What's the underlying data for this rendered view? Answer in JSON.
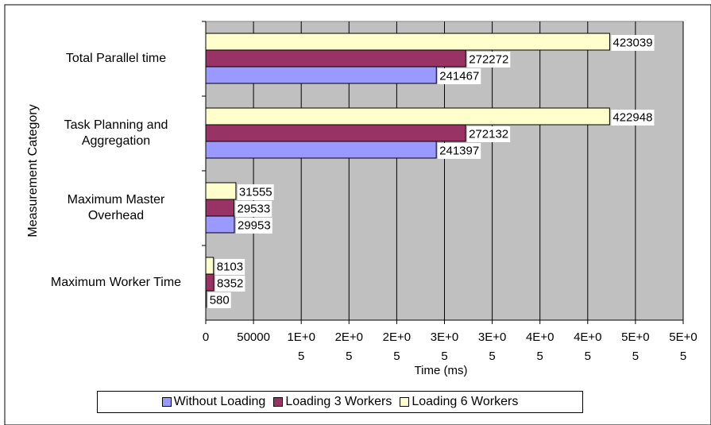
{
  "chart_data": {
    "type": "bar",
    "orientation": "horizontal",
    "categories": [
      "Maximum Worker Time",
      "Maximum Master Overhead",
      "Task Planning and Aggregation",
      "Total Parallel time"
    ],
    "series": [
      {
        "name": "Without Loading",
        "color": "#9999ff",
        "values": [
          580,
          29953,
          241397,
          241467
        ]
      },
      {
        "name": "Loading 3 Workers",
        "color": "#993366",
        "values": [
          8352,
          29533,
          272132,
          272272
        ]
      },
      {
        "name": "Loading 6 Workers",
        "color": "#ffffcc",
        "values": [
          8103,
          31555,
          422948,
          423039
        ]
      }
    ],
    "xlabel": "Time (ms)",
    "ylabel": "Measurement Category",
    "xlim": [
      0,
      500000
    ],
    "xticks": [
      0,
      50000,
      {
        "value": 100000,
        "label": "1E+05"
      },
      {
        "value": 150000,
        "label": "2E+05"
      },
      {
        "value": 200000,
        "label": "2E+05"
      },
      {
        "value": 250000,
        "label": "3E+05"
      },
      {
        "value": 300000,
        "label": "3E+05"
      },
      {
        "value": 350000,
        "label": "4E+05"
      },
      {
        "value": 400000,
        "label": "4E+05"
      },
      {
        "value": 450000,
        "label": "5E+05"
      },
      {
        "value": 500000,
        "label": "5E+05"
      }
    ],
    "grid": true,
    "legend": "bottom"
  }
}
